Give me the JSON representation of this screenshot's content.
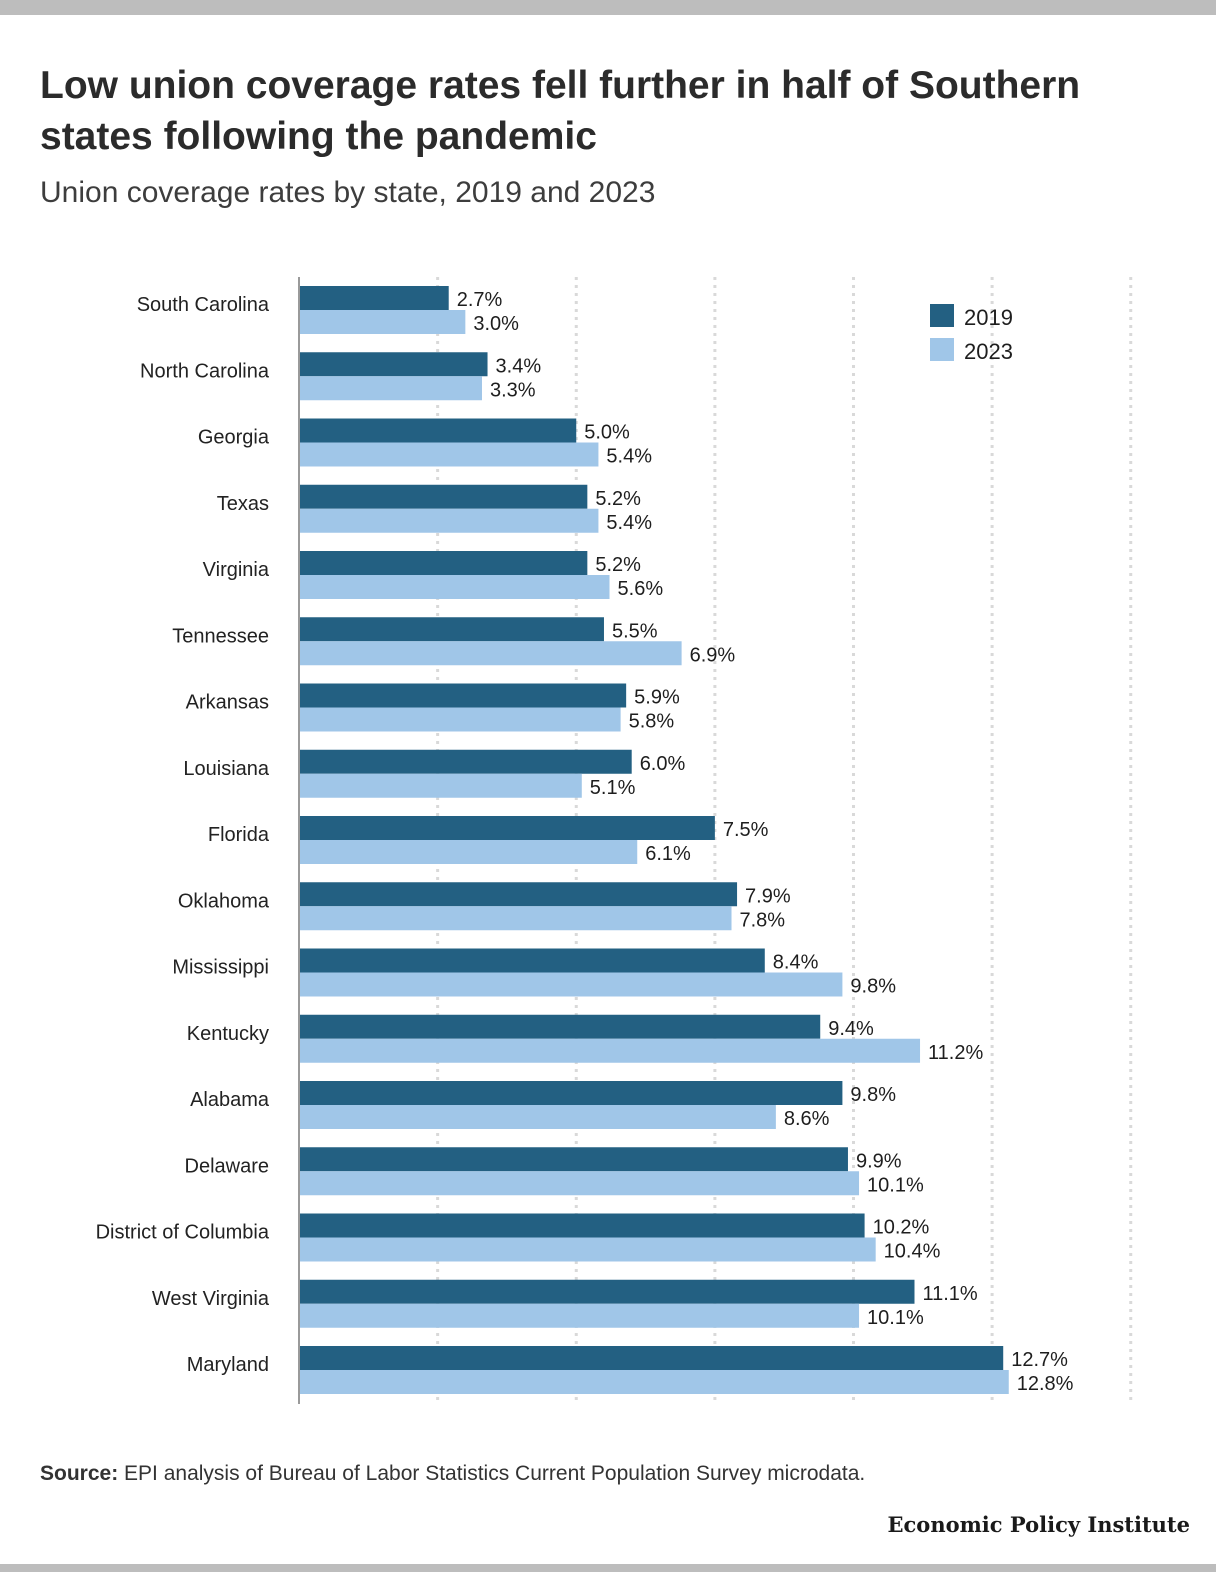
{
  "title": "Low union coverage rates fell further in half of Southern states following the pandemic",
  "subtitle": "Union coverage rates by state, 2019 and 2023",
  "source_label": "Source:",
  "source_text": " EPI analysis of Bureau of Labor Statistics Current Population Survey microdata.",
  "brand": "Economic Policy Institute",
  "colors": {
    "2019": "#236082",
    "2023": "#a0c6e8",
    "grid": "#d9d9d9",
    "axis": "#9a9a9a"
  },
  "chart_data": {
    "type": "bar",
    "orientation": "horizontal",
    "categories": [
      "South Carolina",
      "North Carolina",
      "Georgia",
      "Texas",
      "Virginia",
      "Tennessee",
      "Arkansas",
      "Louisiana",
      "Florida",
      "Oklahoma",
      "Mississippi",
      "Kentucky",
      "Alabama",
      "Delaware",
      "District of Columbia",
      "West Virginia",
      "Maryland"
    ],
    "series": [
      {
        "name": "2019",
        "values": [
          2.7,
          3.4,
          5.0,
          5.2,
          5.2,
          5.5,
          5.9,
          6.0,
          7.5,
          7.9,
          8.4,
          9.4,
          9.8,
          9.9,
          10.2,
          11.1,
          12.7
        ],
        "labels": [
          "2.7%",
          "3.4%",
          "5.0%",
          "5.2%",
          "5.2%",
          "5.5%",
          "5.9%",
          "6.0%",
          "7.5%",
          "7.9%",
          "8.4%",
          "9.4%",
          "9.8%",
          "9.9%",
          "10.2%",
          "11.1%",
          "12.7%"
        ]
      },
      {
        "name": "2023",
        "values": [
          3.0,
          3.3,
          5.4,
          5.4,
          5.6,
          6.9,
          5.8,
          5.1,
          6.1,
          7.8,
          9.8,
          11.2,
          8.6,
          10.1,
          10.4,
          10.1,
          12.8
        ],
        "labels": [
          "3.0%",
          "3.3%",
          "5.4%",
          "5.4%",
          "5.6%",
          "6.9%",
          "5.8%",
          "5.1%",
          "6.1%",
          "7.8%",
          "9.8%",
          "11.2%",
          "8.6%",
          "10.1%",
          "10.4%",
          "10.1%",
          "12.8%"
        ]
      }
    ],
    "xlim": [
      0,
      15
    ],
    "grid": true,
    "legend_position": "top-right"
  }
}
